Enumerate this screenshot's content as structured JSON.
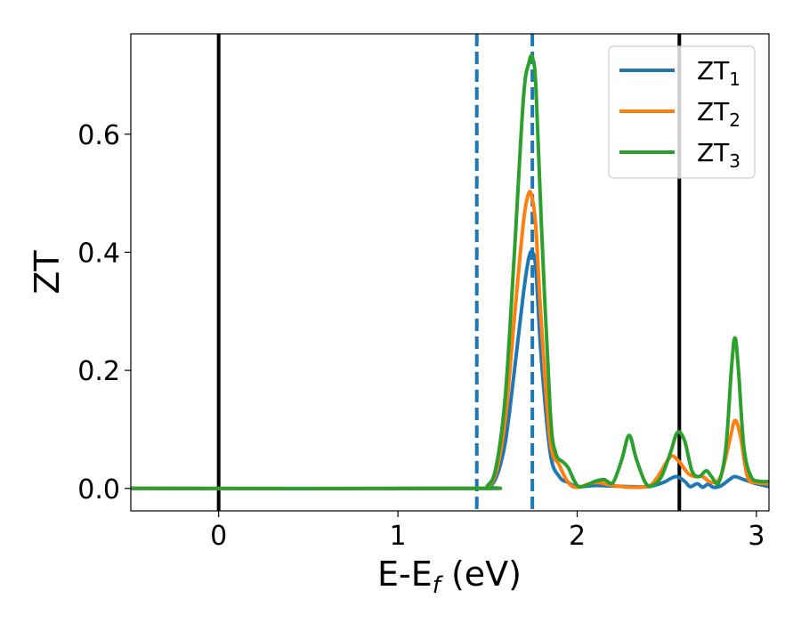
{
  "chart_data": {
    "type": "line",
    "xlabel": "E-E_f (eV)",
    "xlabel_main": "E-E",
    "xlabel_sub": "f",
    "xlabel_unit": " (eV)",
    "ylabel": "ZT",
    "xlim": [
      -0.49,
      3.07
    ],
    "ylim": [
      -0.038,
      0.77
    ],
    "xticks": [
      0,
      1,
      2,
      3
    ],
    "xtick_labels": [
      "0",
      "1",
      "2",
      "3"
    ],
    "yticks": [
      0.0,
      0.2,
      0.4,
      0.6
    ],
    "ytick_labels": [
      "0.0",
      "0.2",
      "0.4",
      "0.6"
    ],
    "grid": false,
    "legend_position": "top-right",
    "vertical_lines": [
      {
        "x": 0.0,
        "style": "solid",
        "color": "#000000"
      },
      {
        "x": 2.57,
        "style": "solid",
        "color": "#000000"
      },
      {
        "x": 1.44,
        "style": "dashed",
        "color": "#1f77b4"
      },
      {
        "x": 1.75,
        "style": "dashed",
        "color": "#1f77b4"
      }
    ],
    "series": [
      {
        "name": "ZT_1",
        "label_main": "ZT",
        "label_sub": "1",
        "color": "#1f77b4",
        "x": [
          -0.49,
          1.4,
          1.5,
          1.55,
          1.6,
          1.65,
          1.7,
          1.73,
          1.75,
          1.77,
          1.8,
          1.85,
          1.9,
          1.95,
          2.0,
          2.1,
          2.2,
          2.3,
          2.4,
          2.48,
          2.55,
          2.6,
          2.63,
          2.67,
          2.7,
          2.73,
          2.76,
          2.8,
          2.85,
          2.88,
          2.93,
          3.0,
          3.07
        ],
        "y": [
          0.0,
          0.0,
          0.003,
          0.02,
          0.08,
          0.2,
          0.33,
          0.39,
          0.4,
          0.37,
          0.22,
          0.06,
          0.02,
          0.01,
          0.003,
          0.005,
          0.004,
          0.003,
          0.003,
          0.01,
          0.02,
          0.012,
          0.003,
          0.008,
          0.002,
          0.007,
          0.002,
          0.004,
          0.015,
          0.02,
          0.015,
          0.008,
          0.003
        ]
      },
      {
        "name": "ZT_2",
        "label_main": "ZT",
        "label_sub": "2",
        "color": "#ff7f0e",
        "x": [
          -0.49,
          1.4,
          1.5,
          1.55,
          1.6,
          1.65,
          1.7,
          1.73,
          1.75,
          1.77,
          1.8,
          1.85,
          1.9,
          1.95,
          2.0,
          2.1,
          2.2,
          2.3,
          2.4,
          2.45,
          2.5,
          2.53,
          2.57,
          2.62,
          2.66,
          2.7,
          2.75,
          2.8,
          2.85,
          2.88,
          2.91,
          2.95,
          3.0,
          3.07
        ],
        "y": [
          0.0,
          0.0,
          0.004,
          0.03,
          0.12,
          0.29,
          0.45,
          0.5,
          0.49,
          0.44,
          0.28,
          0.08,
          0.04,
          0.01,
          0.002,
          0.01,
          0.005,
          0.002,
          0.004,
          0.02,
          0.045,
          0.055,
          0.045,
          0.025,
          0.02,
          0.02,
          0.01,
          0.02,
          0.08,
          0.115,
          0.09,
          0.02,
          0.01,
          0.008
        ]
      },
      {
        "name": "ZT_3",
        "label_main": "ZT",
        "label_sub": "3",
        "color": "#2ca02c",
        "x": [
          -0.49,
          1.4,
          1.5,
          1.55,
          1.6,
          1.65,
          1.7,
          1.73,
          1.75,
          1.77,
          1.8,
          1.85,
          1.88,
          1.92,
          1.95,
          2.0,
          2.05,
          2.1,
          2.15,
          2.2,
          2.25,
          2.29,
          2.33,
          2.38,
          2.42,
          2.47,
          2.52,
          2.56,
          2.6,
          2.64,
          2.68,
          2.72,
          2.75,
          2.79,
          2.83,
          2.86,
          2.88,
          2.9,
          2.93,
          2.97,
          3.02,
          3.07
        ],
        "y": [
          0.0,
          0.0,
          0.005,
          0.04,
          0.16,
          0.4,
          0.66,
          0.72,
          0.73,
          0.68,
          0.45,
          0.13,
          0.06,
          0.045,
          0.035,
          0.005,
          0.005,
          0.012,
          0.015,
          0.01,
          0.05,
          0.09,
          0.05,
          0.01,
          0.005,
          0.02,
          0.06,
          0.095,
          0.08,
          0.03,
          0.02,
          0.03,
          0.02,
          0.01,
          0.07,
          0.2,
          0.255,
          0.2,
          0.07,
          0.02,
          0.012,
          0.012
        ]
      }
    ]
  }
}
